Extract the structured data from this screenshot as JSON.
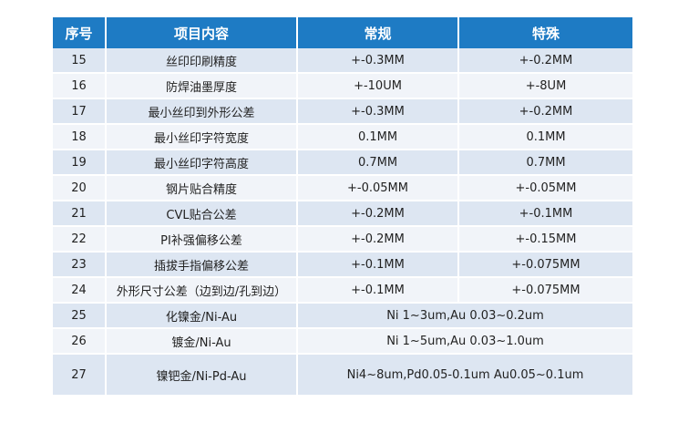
{
  "table": {
    "headers": [
      "序号",
      "项目内容",
      "常规",
      "特殊"
    ],
    "rows": [
      {
        "no": "15",
        "item": "丝印印刷精度",
        "normal": "+-0.3MM",
        "special": "+-0.2MM"
      },
      {
        "no": "16",
        "item": "防焊油墨厚度",
        "normal": "+-10UM",
        "special": "+-8UM"
      },
      {
        "no": "17",
        "item": "最小丝印到外形公差",
        "normal": "+-0.3MM",
        "special": "+-0.2MM"
      },
      {
        "no": "18",
        "item": "最小丝印字符宽度",
        "normal": "0.1MM",
        "special": "0.1MM"
      },
      {
        "no": "19",
        "item": "最小丝印字符高度",
        "normal": "0.7MM",
        "special": "0.7MM"
      },
      {
        "no": "20",
        "item": "钢片贴合精度",
        "normal": "+-0.05MM",
        "special": "+-0.05MM"
      },
      {
        "no": "21",
        "item": "CVL贴合公差",
        "normal": "+-0.2MM",
        "special": "+-0.1MM"
      },
      {
        "no": "22",
        "item": "PI补强偏移公差",
        "normal": "+-0.2MM",
        "special": "+-0.15MM"
      },
      {
        "no": "23",
        "item": "插拔手指偏移公差",
        "normal": "+-0.1MM",
        "special": "+-0.075MM"
      },
      {
        "no": "24",
        "item": "外形尺寸公差（边到边/孔到边）",
        "normal": "+-0.1MM",
        "special": "+-0.075MM"
      }
    ],
    "merged_rows": [
      {
        "no": "25",
        "item": "化镍金/Ni-Au",
        "value": "Ni 1~3um,Au 0.03~0.2um"
      },
      {
        "no": "26",
        "item": "镀金/Ni-Au",
        "value": "Ni 1~5um,Au 0.03~1.0um"
      },
      {
        "no": "27",
        "item": "镍钯金/Ni-Pd-Au",
        "value": "Ni4~8um,Pd0.05-0.1um Au0.05~0.1um"
      }
    ]
  }
}
